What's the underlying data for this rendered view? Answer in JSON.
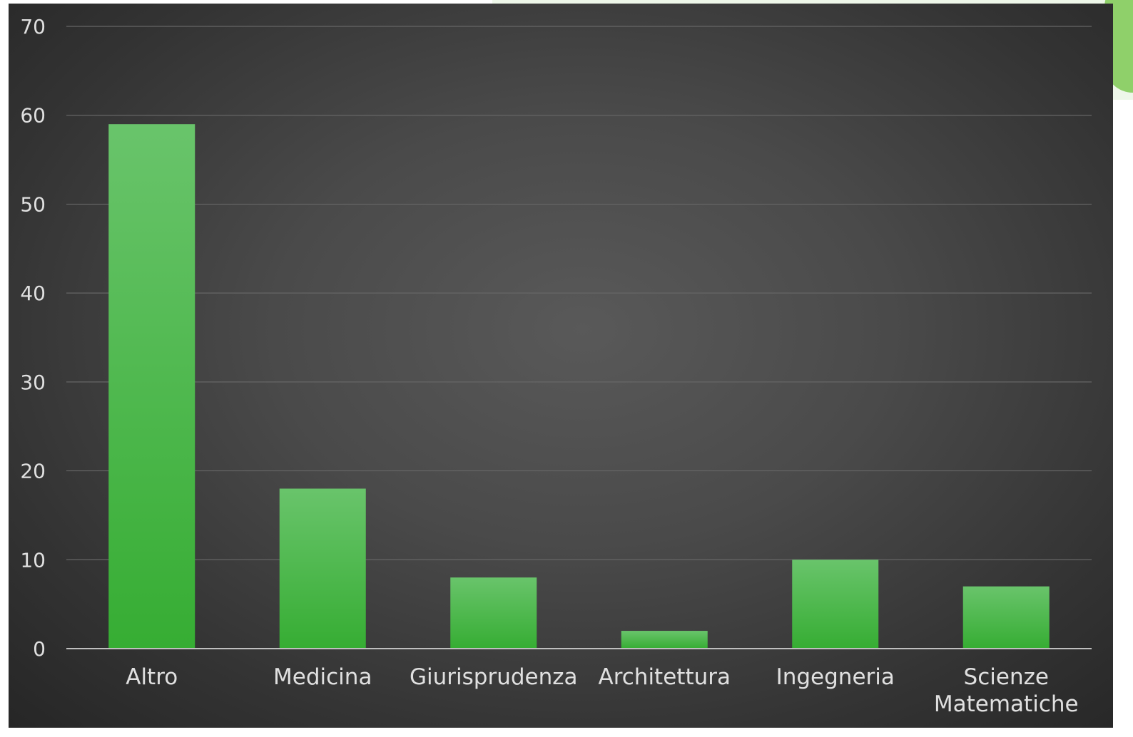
{
  "colors": {
    "bar_top": "#69c46b",
    "bar_bottom": "#36ad33",
    "grid": "#666666",
    "axis": "#bfbfbf",
    "text": "#e0e0e0"
  },
  "chart_data": {
    "type": "bar",
    "categories": [
      "Altro",
      "Medicina",
      "Giurisprudenza",
      "Architettura",
      "Ingegneria",
      "Scienze Matematiche"
    ],
    "category_label_lines": [
      [
        "Altro"
      ],
      [
        "Medicina"
      ],
      [
        "Giurisprudenza"
      ],
      [
        "Architettura"
      ],
      [
        "Ingegneria"
      ],
      [
        "Scienze",
        "Matematiche"
      ]
    ],
    "values": [
      59,
      18,
      8,
      2,
      10,
      7
    ],
    "ylim": [
      0,
      70
    ],
    "yticks": [
      "0",
      "10",
      "20",
      "30",
      "40",
      "50",
      "60",
      "70"
    ],
    "title": "",
    "xlabel": "",
    "ylabel": "",
    "grid": true,
    "legend": "none"
  }
}
